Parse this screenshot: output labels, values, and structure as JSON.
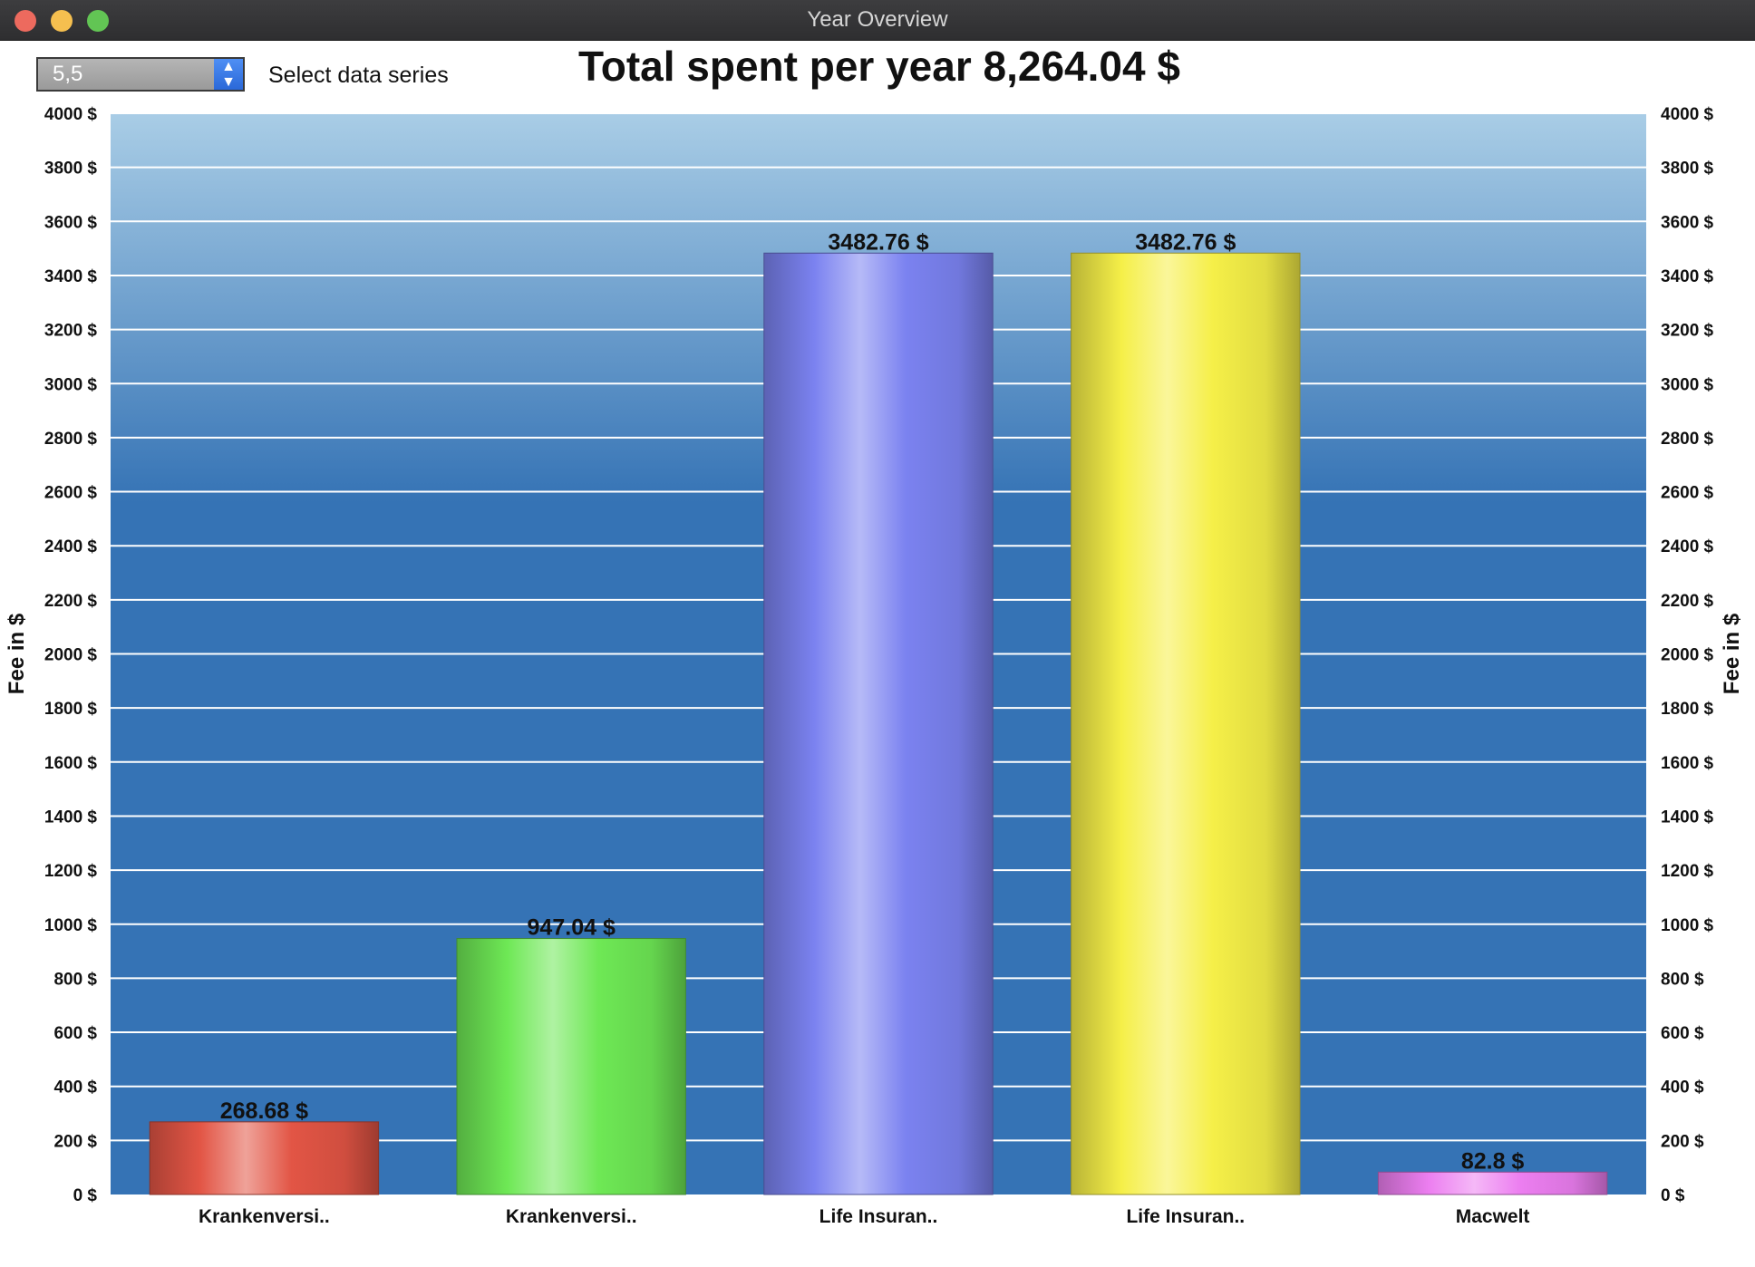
{
  "window": {
    "title": "Year Overview"
  },
  "controls": {
    "series_value": "5,5",
    "series_label": "Select data series"
  },
  "chart_data": {
    "type": "bar",
    "title": "Total spent per year 8,264.04 $",
    "ylabel": "Fee in $",
    "ylabel_right": "Fee in $",
    "ylim": [
      0,
      4000
    ],
    "ytick_step": 200,
    "ytick_suffix": " $",
    "grid": true,
    "categories": [
      "Krankenversi..",
      "Krankenversi..",
      "Life Insuran..",
      "Life Insuran..",
      "Macwelt"
    ],
    "values": [
      268.68,
      947.04,
      3482.76,
      3482.76,
      82.8
    ],
    "data_labels": [
      "268.68 $",
      "947.04 $",
      "3482.76 $",
      "3482.76 $",
      "82.8 $"
    ],
    "colors": [
      "#e25545",
      "#6ee855",
      "#7b82f0",
      "#f5ef48",
      "#ec7ef0"
    ],
    "background_colors": [
      "#a9cde6",
      "#3573b5"
    ]
  }
}
